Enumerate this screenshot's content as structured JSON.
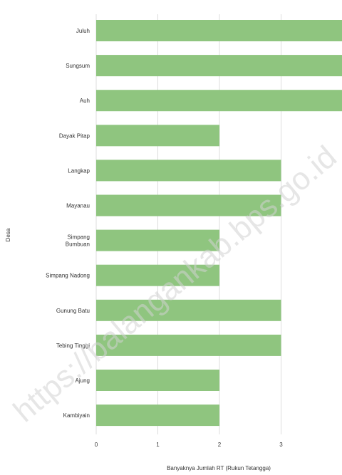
{
  "chart_data": {
    "type": "bar",
    "orientation": "horizontal",
    "categories": [
      "Juluh",
      "Sungsum",
      "Auh",
      "Dayak Pitap",
      "Langkap",
      "Mayanau",
      "Simpang\nBumbuan",
      "Simpang Nadong",
      "Gunung Batu",
      "Tebing Tinggi",
      "Ajung",
      "Kambiyain"
    ],
    "values": [
      4,
      4,
      4,
      2,
      3,
      3,
      2,
      2,
      3,
      3,
      2,
      2
    ],
    "xlabel": "Banyaknya Jumlah RT (Rukun Tetangga)",
    "ylabel": "Desa",
    "xticks": [
      "0",
      "1",
      "2",
      "3"
    ],
    "xlim": [
      0,
      4
    ],
    "grid": true,
    "bar_color": "#8fc57f"
  },
  "watermark": {
    "text": "https://balangankab.bps.go.id"
  }
}
